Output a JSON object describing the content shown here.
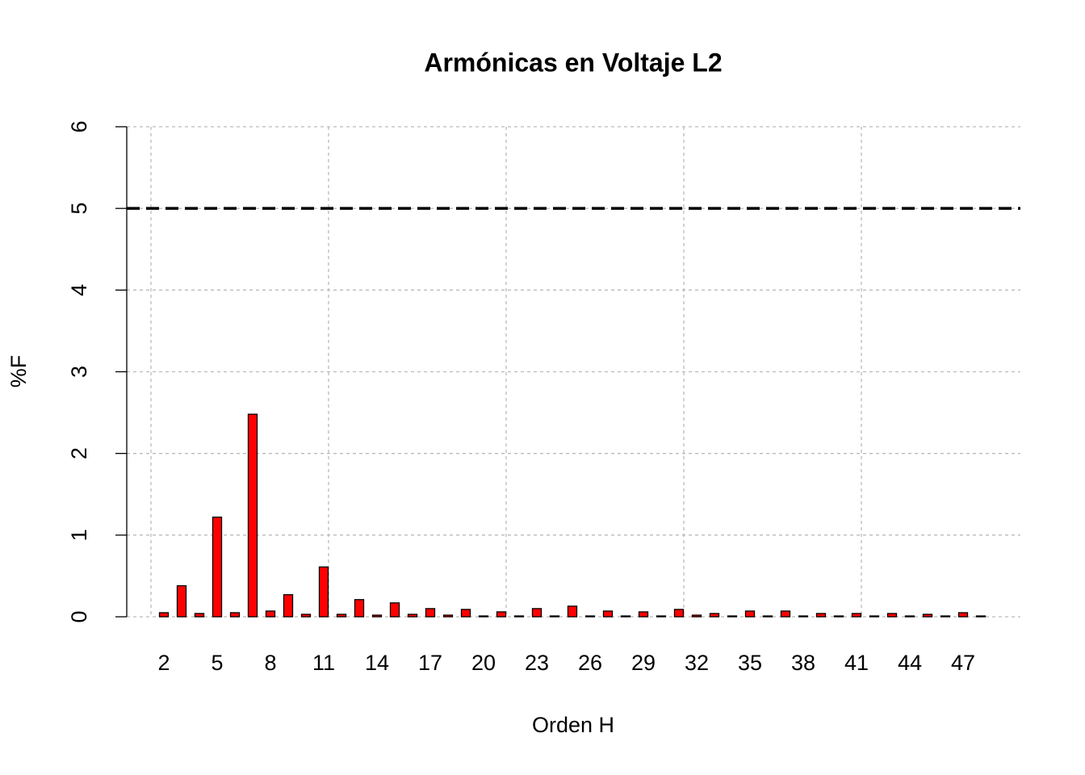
{
  "chart_data": {
    "type": "bar",
    "title": "Armónicas en Voltaje L2",
    "x_label": "Orden H",
    "y_label": "%F",
    "categories": [
      2,
      null,
      null,
      5,
      null,
      null,
      8,
      null,
      null,
      11,
      null,
      null,
      14,
      null,
      null,
      17,
      null,
      null,
      20,
      null,
      null,
      23,
      null,
      null,
      26,
      null,
      null,
      29,
      null,
      null,
      32,
      null,
      null,
      35,
      null,
      null,
      38,
      null,
      null,
      41,
      null,
      null,
      44,
      null,
      null,
      47,
      null
    ],
    "values": [
      0.05,
      0.38,
      0.04,
      1.22,
      0.05,
      2.48,
      0.07,
      0.27,
      0.03,
      0.61,
      0.03,
      0.21,
      0.02,
      0.17,
      0.03,
      0.1,
      0.02,
      0.09,
      0.01,
      0.06,
      0.01,
      0.1,
      0.01,
      0.13,
      0.01,
      0.07,
      0.01,
      0.06,
      0.01,
      0.09,
      0.02,
      0.04,
      0.01,
      0.07,
      0.01,
      0.07,
      0.01,
      0.04,
      0.01,
      0.04,
      0.01,
      0.04,
      0.01,
      0.03,
      0.01,
      0.05,
      0.01
    ],
    "color": "#ff0000",
    "ylim": [
      0,
      6
    ],
    "yticks": [
      0,
      1,
      2,
      3,
      4,
      5,
      6
    ],
    "grid": true,
    "reference_line": 5
  }
}
